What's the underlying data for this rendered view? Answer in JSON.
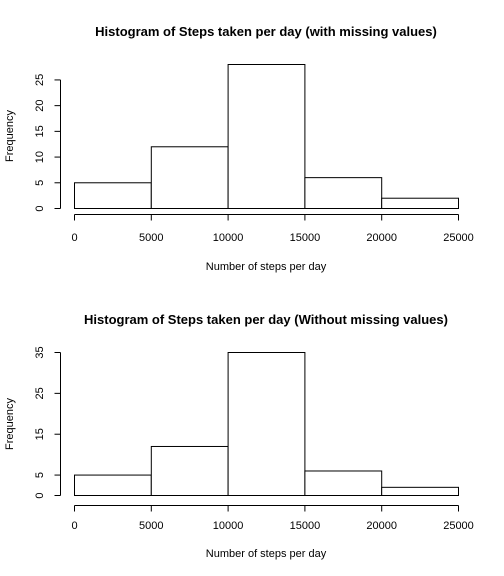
{
  "chart_data": [
    {
      "type": "bar",
      "title": "Histogram of Steps taken per day (with missing values)",
      "xlabel": "Number of steps per day",
      "ylabel": "Frequency",
      "bins": [
        [
          0,
          5000
        ],
        [
          5000,
          10000
        ],
        [
          10000,
          15000
        ],
        [
          15000,
          20000
        ],
        [
          20000,
          25000
        ]
      ],
      "values": [
        5,
        12,
        28,
        6,
        2
      ],
      "xticks": [
        0,
        5000,
        10000,
        15000,
        20000,
        25000
      ],
      "yticks": [
        0,
        5,
        10,
        15,
        20,
        25
      ],
      "xlim": [
        0,
        25000
      ],
      "ylim": [
        0,
        28
      ]
    },
    {
      "type": "bar",
      "title": "Histogram of Steps taken per day (Without missing values)",
      "xlabel": "Number of steps per day",
      "ylabel": "Frequency",
      "bins": [
        [
          0,
          5000
        ],
        [
          5000,
          10000
        ],
        [
          10000,
          15000
        ],
        [
          15000,
          20000
        ],
        [
          20000,
          25000
        ]
      ],
      "values": [
        5,
        12,
        35,
        6,
        2
      ],
      "xticks": [
        0,
        5000,
        10000,
        15000,
        20000,
        25000
      ],
      "yticks": [
        0,
        5,
        15,
        25,
        35
      ],
      "xlim": [
        0,
        25000
      ],
      "ylim": [
        0,
        35
      ]
    }
  ]
}
